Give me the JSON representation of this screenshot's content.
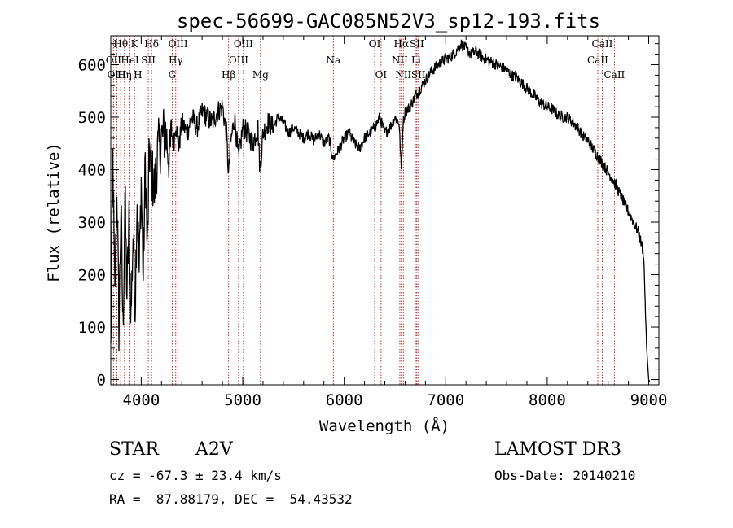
{
  "chart_data": {
    "type": "line",
    "title": "spec-56699-GAC085N52V3_sp12-193.fits",
    "xlabel": "Wavelength (Å)",
    "ylabel": "Flux (relative)",
    "xlim": [
      3700,
      9100
    ],
    "ylim": [
      -10,
      655
    ],
    "xticks": [
      4000,
      5000,
      6000,
      7000,
      8000,
      9000
    ],
    "xtick_labels": [
      "4000",
      "5000",
      "6000",
      "7000",
      "8000",
      "9000"
    ],
    "yticks": [
      0,
      100,
      200,
      300,
      400,
      500,
      600
    ],
    "ytick_labels": [
      "0",
      "100",
      "200",
      "300",
      "400",
      "500",
      "600"
    ],
    "series": [
      {
        "name": "flux",
        "x": [
          3700,
          3720,
          3740,
          3760,
          3780,
          3800,
          3820,
          3840,
          3860,
          3880,
          3900,
          3920,
          3940,
          3960,
          3980,
          4000,
          4020,
          4040,
          4060,
          4080,
          4100,
          4130,
          4160,
          4200,
          4240,
          4280,
          4300,
          4320,
          4340,
          4370,
          4400,
          4450,
          4500,
          4550,
          4600,
          4650,
          4700,
          4750,
          4800,
          4840,
          4861,
          4880,
          4920,
          4960,
          5000,
          5050,
          5100,
          5150,
          5170,
          5200,
          5250,
          5300,
          5350,
          5400,
          5450,
          5500,
          5550,
          5600,
          5650,
          5700,
          5750,
          5800,
          5850,
          5890,
          5950,
          6000,
          6050,
          6100,
          6150,
          6200,
          6250,
          6300,
          6350,
          6400,
          6450,
          6500,
          6540,
          6563,
          6580,
          6600,
          6650,
          6700,
          6750,
          6800,
          6850,
          6900,
          6950,
          7000,
          7050,
          7100,
          7150,
          7200,
          7250,
          7300,
          7350,
          7400,
          7450,
          7500,
          7550,
          7600,
          7650,
          7700,
          7750,
          7800,
          7850,
          7900,
          7950,
          8000,
          8050,
          8100,
          8150,
          8200,
          8250,
          8300,
          8350,
          8400,
          8450,
          8500,
          8550,
          8600,
          8650,
          8700,
          8750,
          8800,
          8850,
          8900,
          8950,
          8980,
          9000,
          9010
        ],
        "y": [
          50,
          420,
          150,
          380,
          100,
          330,
          90,
          350,
          160,
          300,
          120,
          280,
          140,
          360,
          200,
          380,
          190,
          420,
          240,
          440,
          400,
          360,
          430,
          460,
          470,
          420,
          470,
          450,
          490,
          440,
          490,
          470,
          500,
          480,
          510,
          500,
          490,
          510,
          520,
          470,
          390,
          450,
          500,
          420,
          480,
          470,
          450,
          480,
          400,
          470,
          490,
          480,
          500,
          490,
          470,
          480,
          470,
          460,
          470,
          455,
          470,
          450,
          460,
          420,
          440,
          460,
          470,
          450,
          440,
          460,
          470,
          480,
          500,
          470,
          480,
          500,
          490,
          400,
          490,
          510,
          520,
          540,
          555,
          570,
          585,
          595,
          605,
          610,
          615,
          625,
          640,
          630,
          620,
          625,
          615,
          610,
          605,
          600,
          595,
          590,
          580,
          575,
          565,
          555,
          545,
          535,
          525,
          520,
          515,
          505,
          500,
          500,
          490,
          480,
          465,
          455,
          440,
          425,
          410,
          395,
          380,
          360,
          340,
          320,
          300,
          280,
          240,
          60,
          0,
          -5
        ]
      }
    ],
    "lines": [
      {
        "label": "Hθ",
        "wavelength": 3798,
        "row": 0
      },
      {
        "label": "OII",
        "wavelength": 3727,
        "row": 1
      },
      {
        "label": "OIII",
        "wavelength": 3760,
        "row": 2
      },
      {
        "label": "Hη",
        "wavelength": 3835,
        "row": 2
      },
      {
        "label": "K",
        "wavelength": 3934,
        "row": 0
      },
      {
        "label": "HeI",
        "wavelength": 3889,
        "row": 1
      },
      {
        "label": "H",
        "wavelength": 3968,
        "row": 2
      },
      {
        "label": "SII",
        "wavelength": 4070,
        "row": 1
      },
      {
        "label": "Hδ",
        "wavelength": 4102,
        "row": 0
      },
      {
        "label": "OIII",
        "wavelength": 4363,
        "row": 0
      },
      {
        "label": "Hγ",
        "wavelength": 4340,
        "row": 1
      },
      {
        "label": "G",
        "wavelength": 4305,
        "row": 2
      },
      {
        "label": "Hβ",
        "wavelength": 4861,
        "row": 2
      },
      {
        "label": "OIII",
        "wavelength": 5007,
        "row": 0
      },
      {
        "label": "OIII",
        "wavelength": 4959,
        "row": 1
      },
      {
        "label": "Mg",
        "wavelength": 5175,
        "row": 2
      },
      {
        "label": "Na",
        "wavelength": 5893,
        "row": 1
      },
      {
        "label": "OI",
        "wavelength": 6300,
        "row": 0
      },
      {
        "label": "OI",
        "wavelength": 6363,
        "row": 2
      },
      {
        "label": "Hα",
        "wavelength": 6563,
        "row": 0
      },
      {
        "label": "NII",
        "wavelength": 6548,
        "row": 1
      },
      {
        "label": "NII",
        "wavelength": 6583,
        "row": 2
      },
      {
        "label": "SII",
        "wavelength": 6716,
        "row": 0
      },
      {
        "label": "Li",
        "wavelength": 6708,
        "row": 1
      },
      {
        "label": "SII",
        "wavelength": 6731,
        "row": 2
      },
      {
        "label": "CaII",
        "wavelength": 8542,
        "row": 0
      },
      {
        "label": "CaII",
        "wavelength": 8498,
        "row": 1
      },
      {
        "label": "CaII",
        "wavelength": 8662,
        "row": 2
      }
    ]
  },
  "info": {
    "object_class": "STAR",
    "subclass": "A2V",
    "survey": "LAMOST DR3",
    "cz": "cz = -67.3 ± 23.4 km/s",
    "obs_date": "Obs-Date: 20140210",
    "coords": "RA =  87.88179, DEC =  54.43532"
  },
  "colors": {
    "line_marker": "#b03030",
    "spectrum": "#000000"
  }
}
